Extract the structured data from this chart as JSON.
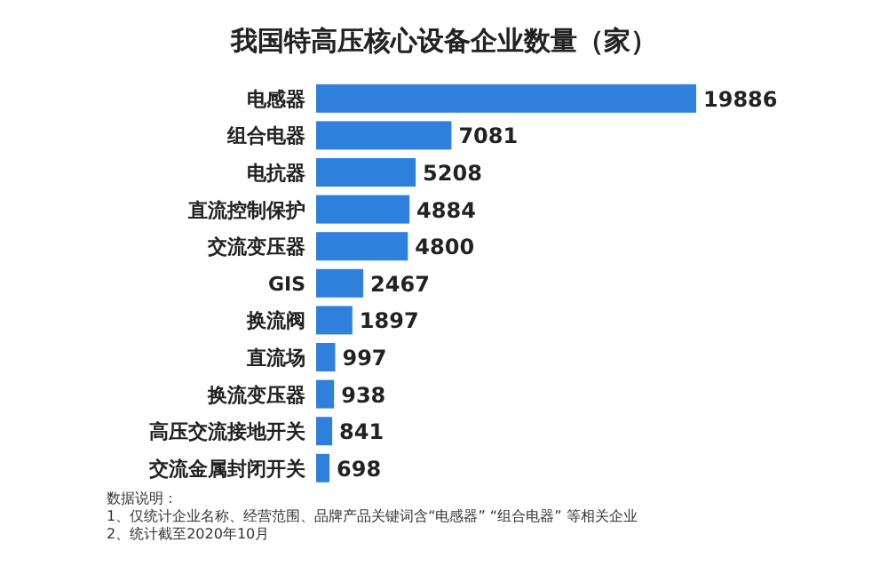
{
  "chart_data": {
    "type": "bar",
    "orientation": "horizontal",
    "title": "我国特高压核心设备企业数量（家）",
    "categories": [
      "电感器",
      "组合电器",
      "电抗器",
      "直流控制保护",
      "交流变压器",
      "GIS",
      "换流阀",
      "直流场",
      "换流变压器",
      "高压交流接地开关",
      "交流金属封闭开关"
    ],
    "values": [
      19886,
      7081,
      5208,
      4884,
      4800,
      2467,
      1897,
      997,
      938,
      841,
      698
    ],
    "color": "#2f80dc",
    "data_labels": true,
    "annotations": [
      "数据说明：",
      "1、仅统计企业名称、经营范围、品牌产品关键词含“电感器” “组合电器” 等相关企业",
      "2、统计截至2020年10月"
    ]
  }
}
